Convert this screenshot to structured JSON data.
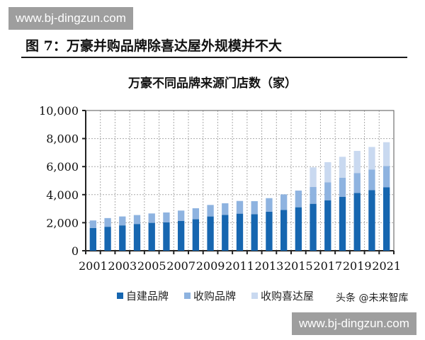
{
  "watermarks": {
    "top": "www.bj-dingzun.com",
    "bottom": "www.bj-dingzun.com",
    "corner": "头条 @未来智库"
  },
  "figure_title": "图 7：万豪并购品牌除喜达屋外规模并不大",
  "colors": {
    "own": "#1666b0",
    "acquired": "#8eb3e0",
    "starwood": "#c9d9f0"
  },
  "chart_data": {
    "type": "bar",
    "stacked": true,
    "title": "万豪不同品牌来源门店数（家）",
    "xlabel": "",
    "ylabel": "",
    "ylim": [
      0,
      10000
    ],
    "yticks": [
      "0",
      "2,000",
      "4,000",
      "6,000",
      "8,000",
      "10,000"
    ],
    "ytick_values": [
      0,
      2000,
      4000,
      6000,
      8000,
      10000
    ],
    "grid": true,
    "legend_position": "bottom",
    "categories": [
      "2001",
      "2002",
      "2003",
      "2004",
      "2005",
      "2006",
      "2007",
      "2008",
      "2009",
      "2010",
      "2011",
      "2012",
      "2013",
      "2014",
      "2015",
      "2016",
      "2017",
      "2018",
      "2019",
      "2020",
      "2021"
    ],
    "xtick_labels": [
      "2001",
      "2003",
      "2005",
      "2007",
      "2009",
      "2011",
      "2013",
      "2015",
      "2017",
      "2019",
      "2021"
    ],
    "series": [
      {
        "name": "自建品牌",
        "values": [
          1625,
          1710,
          1810,
          1910,
          1990,
          2030,
          2130,
          2245,
          2445,
          2560,
          2645,
          2610,
          2780,
          2915,
          3100,
          3350,
          3600,
          3850,
          4120,
          4320,
          4520
        ]
      },
      {
        "name": "收购品牌",
        "values": [
          535,
          620,
          635,
          635,
          670,
          700,
          735,
          785,
          820,
          825,
          905,
          925,
          970,
          1105,
          1190,
          1205,
          1275,
          1360,
          1425,
          1475,
          1525
        ]
      },
      {
        "name": "收购喜达屋",
        "values": [
          0,
          0,
          0,
          0,
          0,
          0,
          0,
          0,
          0,
          0,
          0,
          0,
          0,
          0,
          0,
          1390,
          1440,
          1490,
          1575,
          1605,
          1695
        ]
      }
    ]
  }
}
